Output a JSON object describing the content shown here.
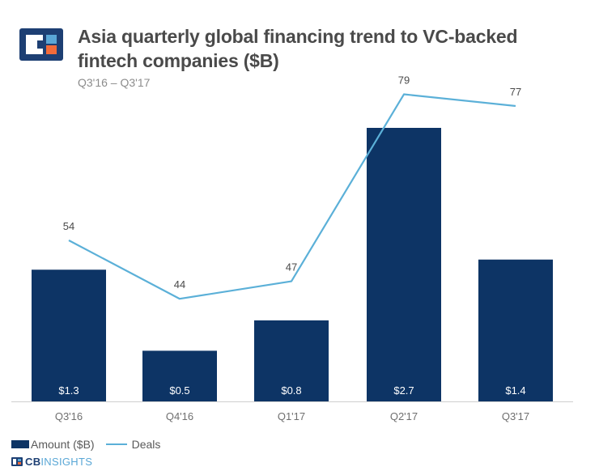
{
  "header": {
    "title": "Asia quarterly global financing trend to VC-backed fintech companies ($B)",
    "subtitle": "Q3'16 – Q3'17"
  },
  "brand": {
    "name_part1": "CB",
    "name_part2": "INSIGHTS",
    "icon": "cb-insights-logo-icon"
  },
  "colors": {
    "bar": "#0d3465",
    "line": "#5bb0d8",
    "logo_dark": "#1d3f73",
    "logo_orange": "#f26b3a",
    "logo_blue": "#5aa7d6"
  },
  "chart_data": {
    "type": "bar",
    "categories": [
      "Q3'16",
      "Q4'16",
      "Q1'17",
      "Q2'17",
      "Q3'17"
    ],
    "series": [
      {
        "name": "Amount ($B)",
        "type": "bar",
        "values": [
          1.3,
          0.5,
          0.8,
          2.7,
          1.4
        ],
        "labels": [
          "$1.3",
          "$0.5",
          "$0.8",
          "$2.7",
          "$1.4"
        ]
      },
      {
        "name": "Deals",
        "type": "line",
        "values": [
          54,
          44,
          47,
          79,
          77
        ],
        "labels": [
          "54",
          "44",
          "47",
          "79",
          "77"
        ]
      }
    ],
    "legend": [
      "Amount ($B)",
      "Deals"
    ],
    "legend_position": "bottom-left",
    "grid": false
  }
}
